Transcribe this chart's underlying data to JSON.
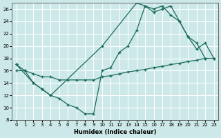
{
  "xlabel": "Humidex (Indice chaleur)",
  "bg_color": "#cce8e8",
  "grid_color": "#ffffff",
  "line_color": "#1a6b5a",
  "xlim": [
    -0.5,
    23.5
  ],
  "ylim": [
    8,
    27
  ],
  "xticks": [
    0,
    1,
    2,
    3,
    4,
    5,
    6,
    7,
    8,
    9,
    10,
    11,
    12,
    13,
    14,
    15,
    16,
    17,
    18,
    19,
    20,
    21,
    22,
    23
  ],
  "yticks": [
    8,
    10,
    12,
    14,
    16,
    18,
    20,
    22,
    24,
    26
  ],
  "line1_x": [
    0,
    1,
    2,
    3,
    4,
    5,
    6,
    7,
    8,
    9,
    10,
    11,
    12,
    13,
    14,
    15,
    16,
    17,
    18,
    19,
    20,
    21,
    22
  ],
  "line1_y": [
    17,
    16,
    14,
    13,
    12,
    11.5,
    10.5,
    10,
    9,
    9,
    16,
    16.5,
    19,
    20,
    22.5,
    26.5,
    25.5,
    26,
    26.5,
    24,
    21.5,
    20.5,
    18
  ],
  "line2_x": [
    0,
    2,
    3,
    4,
    10,
    14,
    15,
    16,
    17,
    18,
    19,
    20,
    21,
    22,
    23
  ],
  "line2_y": [
    17,
    14,
    13,
    12,
    20,
    27,
    26.5,
    26,
    26.5,
    25,
    24,
    21.5,
    19.5,
    20.5,
    18
  ],
  "line3_x": [
    0,
    1,
    2,
    3,
    4,
    5,
    6,
    7,
    8,
    9,
    10,
    11,
    12,
    13,
    14,
    15,
    16,
    17,
    18,
    19,
    20,
    21,
    22,
    23
  ],
  "line3_y": [
    16,
    16,
    15.5,
    15,
    15,
    14.5,
    14.5,
    14.5,
    14.5,
    14.5,
    15,
    15.2,
    15.5,
    15.8,
    16,
    16.2,
    16.5,
    16.7,
    17,
    17.2,
    17.5,
    17.7,
    18,
    18
  ]
}
